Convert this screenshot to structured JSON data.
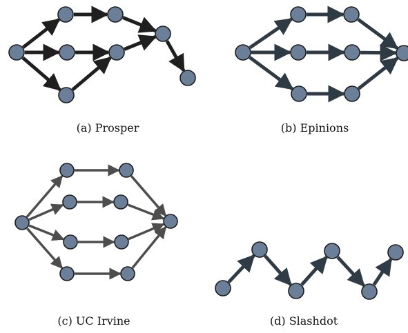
{
  "colors": {
    "node_fill": "#6b7f99",
    "node_stroke": "#1c1c1c",
    "panel_a_edge": "#1f1f1f",
    "panel_b_edge": "#2e3a44",
    "panel_c_edge": "#4d4d4d",
    "panel_d_edge": "#2f3b45"
  },
  "panels": [
    {
      "id": "a",
      "caption": "(a) Prosper",
      "nodes": [
        "n1",
        "n2",
        "n3",
        "n4",
        "n5",
        "n6",
        "n7",
        "n8",
        "n9"
      ],
      "edges": [
        [
          "n1",
          "n2"
        ],
        [
          "n1",
          "n3"
        ],
        [
          "n1",
          "n4"
        ],
        [
          "n2",
          "n5"
        ],
        [
          "n3",
          "n6"
        ],
        [
          "n4",
          "n6"
        ],
        [
          "n5",
          "n7"
        ],
        [
          "n6",
          "n7"
        ],
        [
          "n7",
          "n8"
        ]
      ]
    },
    {
      "id": "b",
      "caption": "(b) Epinions",
      "nodes": [
        "n1",
        "n2",
        "n3",
        "n4",
        "n5",
        "n6",
        "n7",
        "n8"
      ],
      "edges": [
        [
          "n1",
          "n2"
        ],
        [
          "n1",
          "n3"
        ],
        [
          "n1",
          "n4"
        ],
        [
          "n2",
          "n5"
        ],
        [
          "n3",
          "n6"
        ],
        [
          "n4",
          "n7"
        ],
        [
          "n5",
          "n8"
        ],
        [
          "n6",
          "n8"
        ],
        [
          "n7",
          "n8"
        ]
      ]
    },
    {
      "id": "c",
      "caption": "(c) UC Irvine",
      "nodes": [
        "n1",
        "n2",
        "n3",
        "n4",
        "n5",
        "n6",
        "n7",
        "n8",
        "n9",
        "n10"
      ],
      "edges": [
        [
          "n1",
          "n2"
        ],
        [
          "n1",
          "n3"
        ],
        [
          "n1",
          "n4"
        ],
        [
          "n1",
          "n5"
        ],
        [
          "n2",
          "n6"
        ],
        [
          "n3",
          "n7"
        ],
        [
          "n4",
          "n8"
        ],
        [
          "n5",
          "n9"
        ],
        [
          "n6",
          "n10"
        ],
        [
          "n7",
          "n10"
        ],
        [
          "n8",
          "n10"
        ],
        [
          "n9",
          "n10"
        ]
      ]
    },
    {
      "id": "d",
      "caption": "(d) Slashdot",
      "nodes": [
        "n1",
        "n2",
        "n3",
        "n4",
        "n5",
        "n6"
      ],
      "edges": [
        [
          "n1",
          "n2"
        ],
        [
          "n2",
          "n3"
        ],
        [
          "n3",
          "n4"
        ],
        [
          "n4",
          "n5"
        ],
        [
          "n5",
          "n6"
        ]
      ]
    }
  ]
}
